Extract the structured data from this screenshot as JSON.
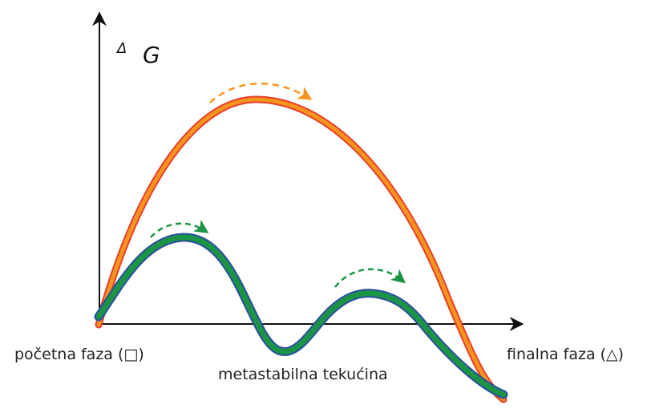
{
  "axis": {
    "y_label_delta": "Δ",
    "y_label_g": "G"
  },
  "labels": {
    "initial_phase": "početna faza (□)",
    "final_phase": "finalna faza (△)",
    "metastable": "metastabilna tekućina"
  },
  "colors": {
    "orange_fill": "#f7941d",
    "orange_edge": "#e8402a",
    "green_fill": "#1c9446",
    "green_edge": "#2b4fa0",
    "axis": "#111111",
    "arrow_orange": "#f7941d",
    "arrow_green": "#1c9446"
  }
}
